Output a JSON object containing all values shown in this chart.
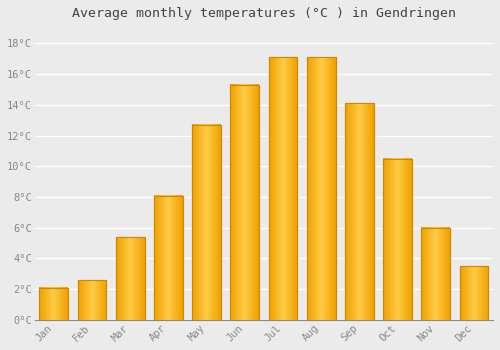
{
  "title": "Average monthly temperatures (°C ) in Gendringen",
  "months": [
    "Jan",
    "Feb",
    "Mar",
    "Apr",
    "May",
    "Jun",
    "Jul",
    "Aug",
    "Sep",
    "Oct",
    "Nov",
    "Dec"
  ],
  "values": [
    2.1,
    2.6,
    5.4,
    8.1,
    12.7,
    15.3,
    17.1,
    17.1,
    14.1,
    10.5,
    6.0,
    3.5
  ],
  "bar_color_light": "#FFCC44",
  "bar_color_dark": "#F0A000",
  "bar_edge_color": "#CC8800",
  "background_color": "#EBEBEB",
  "grid_color": "#FFFFFF",
  "tick_color": "#888888",
  "title_color": "#444444",
  "ylim": [
    0,
    19
  ],
  "yticks": [
    0,
    2,
    4,
    6,
    8,
    10,
    12,
    14,
    16,
    18
  ],
  "ytick_labels": [
    "0°C",
    "2°C",
    "4°C",
    "6°C",
    "8°C",
    "10°C",
    "12°C",
    "14°C",
    "16°C",
    "18°C"
  ],
  "bar_width": 0.75,
  "figsize": [
    5.0,
    3.5
  ],
  "dpi": 100
}
